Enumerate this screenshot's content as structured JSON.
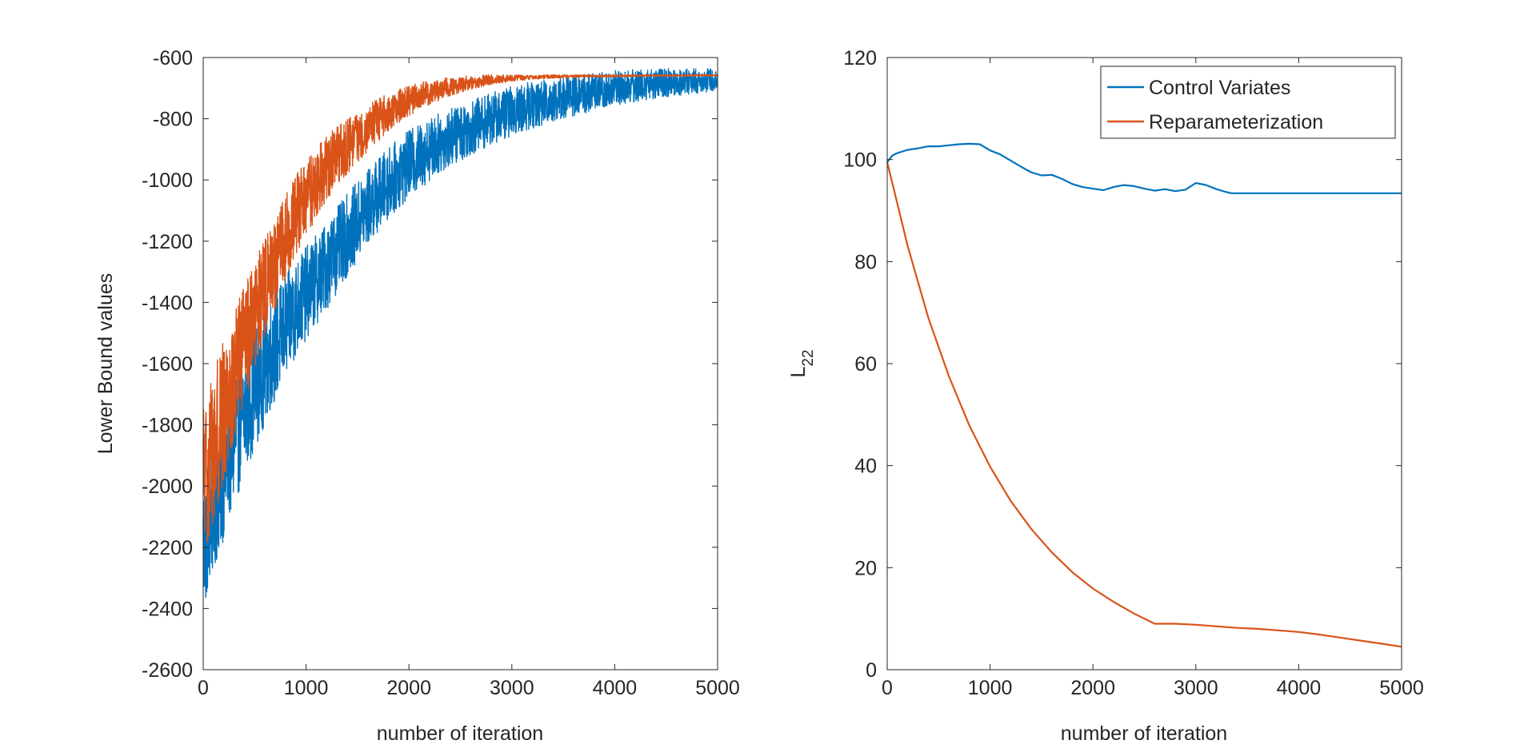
{
  "chart_data": [
    {
      "type": "line",
      "title": "",
      "xlabel": "number of iteration",
      "ylabel": "Lower Bound values",
      "xlim": [
        0,
        5000
      ],
      "ylim": [
        -2600,
        -600
      ],
      "xticks": [
        0,
        1000,
        2000,
        3000,
        4000,
        5000
      ],
      "yticks": [
        -600,
        -800,
        -1000,
        -1200,
        -1400,
        -1600,
        -1800,
        -2000,
        -2200,
        -2400,
        -2600
      ],
      "grid": false,
      "legend": "none",
      "series": [
        {
          "name": "Control Variates",
          "color": "#0072BD",
          "noisy": true,
          "x": [
            0,
            100,
            200,
            300,
            400,
            500,
            600,
            700,
            800,
            900,
            1000,
            1200,
            1400,
            1600,
            1800,
            2000,
            2200,
            2400,
            2600,
            2800,
            3000,
            3200,
            3400,
            3600,
            3800,
            4000,
            4200,
            4400,
            4600,
            4800,
            5000
          ],
          "mean": [
            -2200,
            -2050,
            -1950,
            -1850,
            -1760,
            -1680,
            -1610,
            -1540,
            -1480,
            -1420,
            -1370,
            -1280,
            -1180,
            -1090,
            -1010,
            -950,
            -900,
            -860,
            -830,
            -800,
            -775,
            -755,
            -740,
            -725,
            -712,
            -700,
            -692,
            -685,
            -680,
            -676,
            -672
          ],
          "spread": [
            250,
            260,
            250,
            240,
            230,
            220,
            210,
            200,
            190,
            180,
            170,
            160,
            150,
            140,
            130,
            125,
            115,
            105,
            100,
            95,
            90,
            85,
            80,
            75,
            70,
            65,
            60,
            55,
            50,
            45,
            40
          ]
        },
        {
          "name": "Reparameterization",
          "color": "#D95319",
          "noisy": true,
          "x": [
            0,
            100,
            200,
            300,
            400,
            500,
            600,
            700,
            800,
            900,
            1000,
            1200,
            1400,
            1600,
            1800,
            2000,
            2200,
            2400,
            2600,
            2800,
            3000,
            3200,
            3400,
            3600,
            3800,
            4000,
            4200,
            4400,
            4600,
            4800,
            5000
          ],
          "mean": [
            -2000,
            -1860,
            -1760,
            -1650,
            -1540,
            -1440,
            -1350,
            -1270,
            -1190,
            -1120,
            -1060,
            -960,
            -890,
            -830,
            -780,
            -740,
            -715,
            -695,
            -682,
            -672,
            -667,
            -664,
            -662,
            -661,
            -660,
            -660,
            -659,
            -659,
            -659,
            -658,
            -658
          ],
          "spread": [
            300,
            280,
            260,
            240,
            220,
            200,
            180,
            170,
            160,
            150,
            140,
            120,
            100,
            85,
            70,
            55,
            45,
            35,
            25,
            18,
            12,
            8,
            6,
            5,
            4,
            4,
            3,
            3,
            3,
            3,
            3
          ]
        }
      ]
    },
    {
      "type": "line",
      "title": "",
      "xlabel": "number of iteration",
      "ylabel": "L",
      "ylabel_subscript": "22",
      "xlim": [
        0,
        5000
      ],
      "ylim": [
        0,
        120
      ],
      "xticks": [
        0,
        1000,
        2000,
        3000,
        4000,
        5000
      ],
      "yticks": [
        0,
        20,
        40,
        60,
        80,
        100,
        120
      ],
      "grid": false,
      "legend": "top-right",
      "series": [
        {
          "name": "Control Variates",
          "color": "#0072BD",
          "noisy": false,
          "x": [
            0,
            50,
            100,
            200,
            300,
            400,
            500,
            600,
            700,
            800,
            900,
            1000,
            1100,
            1200,
            1300,
            1400,
            1500,
            1600,
            1700,
            1800,
            1900,
            2000,
            2100,
            2200,
            2300,
            2400,
            2500,
            2600,
            2700,
            2800,
            2900,
            3000,
            3100,
            3200,
            3300,
            3350,
            4000,
            5000
          ],
          "y": [
            99.5,
            100.8,
            101.3,
            101.9,
            102.2,
            102.6,
            102.6,
            102.8,
            103.0,
            103.1,
            103.0,
            101.8,
            101.0,
            99.8,
            98.6,
            97.5,
            96.9,
            97.0,
            96.2,
            95.2,
            94.6,
            94.3,
            94.0,
            94.6,
            95.0,
            94.8,
            94.3,
            93.9,
            94.2,
            93.8,
            94.1,
            95.4,
            95.0,
            94.2,
            93.6,
            93.4,
            93.4,
            93.4
          ]
        },
        {
          "name": "Reparameterization",
          "color": "#D95319",
          "noisy": false,
          "x": [
            0,
            200,
            400,
            600,
            800,
            1000,
            1200,
            1400,
            1600,
            1800,
            2000,
            2200,
            2400,
            2600,
            2800,
            3000,
            3200,
            3400,
            3600,
            3800,
            4000,
            4200,
            4400,
            4600,
            4800,
            5000
          ],
          "y": [
            99.5,
            83.0,
            69.0,
            57.5,
            47.8,
            39.8,
            33.1,
            27.6,
            23.0,
            19.1,
            15.9,
            13.3,
            11.0,
            9.0,
            9.0,
            8.8,
            8.5,
            8.2,
            8.0,
            7.7,
            7.4,
            6.9,
            6.3,
            5.7,
            5.1,
            4.5
          ]
        }
      ]
    }
  ]
}
